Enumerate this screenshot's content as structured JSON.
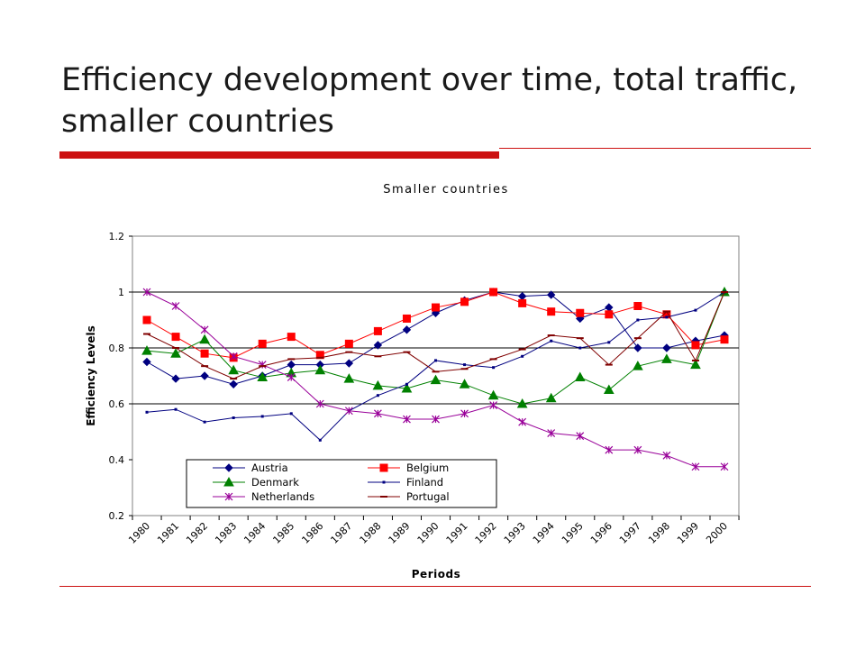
{
  "slide": {
    "title": "Efficiency development over time, total traffic, smaller countries"
  },
  "colors": {
    "accent": "#cc1111",
    "gridline": "#000000"
  },
  "chart_data": {
    "type": "line",
    "title": "Smaller countries",
    "xlabel": "Periods",
    "ylabel": "Efficiency Levels",
    "ylim": [
      0.2,
      1.2
    ],
    "yticks": [
      "0.2",
      "0.4",
      "0.6",
      "0.8",
      "1",
      "1.2"
    ],
    "grid": "horizontal major gridlines at 0.6, 0.8, 1",
    "legend": "bottom-left inside plot, two columns",
    "categories": [
      "1980",
      "1981",
      "1982",
      "1983",
      "1984",
      "1985",
      "1986",
      "1987",
      "1988",
      "1989",
      "1990",
      "1991",
      "1992",
      "1993",
      "1994",
      "1995",
      "1996",
      "1997",
      "1998",
      "1999",
      "2000"
    ],
    "series": [
      {
        "name": "Austria",
        "color": "#000080",
        "marker": "diamond",
        "values": [
          0.75,
          0.69,
          0.7,
          0.67,
          0.7,
          0.74,
          0.74,
          0.745,
          0.81,
          0.865,
          0.925,
          0.97,
          1.0,
          0.985,
          0.99,
          0.905,
          0.945,
          0.8,
          0.8,
          0.825,
          0.845
        ]
      },
      {
        "name": "Belgium",
        "color": "#ff0000",
        "marker": "square",
        "values": [
          0.9,
          0.84,
          0.78,
          0.765,
          0.815,
          0.84,
          0.775,
          0.815,
          0.86,
          0.905,
          0.945,
          0.965,
          1.0,
          0.96,
          0.93,
          0.925,
          0.92,
          0.95,
          0.92,
          0.81,
          0.83
        ]
      },
      {
        "name": "Denmark",
        "color": "#008000",
        "marker": "triangle",
        "values": [
          0.79,
          0.78,
          0.83,
          0.72,
          0.695,
          0.71,
          0.72,
          0.69,
          0.665,
          0.655,
          0.685,
          0.67,
          0.63,
          0.6,
          0.62,
          0.695,
          0.65,
          0.735,
          0.76,
          0.74,
          1.0
        ]
      },
      {
        "name": "Finland",
        "color": "#000080",
        "marker": "dot",
        "values": [
          0.57,
          0.58,
          0.535,
          0.55,
          0.555,
          0.565,
          0.47,
          0.575,
          0.63,
          0.67,
          0.755,
          0.74,
          0.73,
          0.77,
          0.825,
          0.8,
          0.82,
          0.9,
          0.91,
          0.935,
          1.0
        ]
      },
      {
        "name": "Netherlands",
        "color": "#990099",
        "marker": "star",
        "values": [
          1.0,
          0.95,
          0.865,
          0.77,
          0.74,
          0.695,
          0.6,
          0.575,
          0.565,
          0.545,
          0.545,
          0.565,
          0.595,
          0.535,
          0.495,
          0.485,
          0.435,
          0.435,
          0.415,
          0.375,
          0.375
        ]
      },
      {
        "name": "Portugal",
        "color": "#800000",
        "marker": "dash",
        "values": [
          0.85,
          0.8,
          0.735,
          0.69,
          0.735,
          0.76,
          0.765,
          0.785,
          0.77,
          0.785,
          0.715,
          0.725,
          0.76,
          0.795,
          0.845,
          0.835,
          0.74,
          0.835,
          0.93,
          0.755,
          1.0
        ]
      }
    ]
  }
}
